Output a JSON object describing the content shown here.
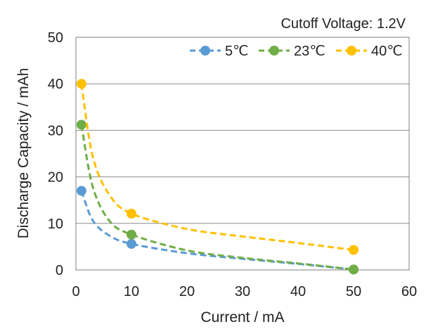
{
  "chart_data": {
    "type": "scatter",
    "title": "",
    "annotation": "Cutoff Voltage: 1.2V",
    "xlabel": "Current / mA",
    "ylabel": "Discharge Capacity / mAh",
    "xlim": [
      0,
      60
    ],
    "ylim": [
      0,
      50
    ],
    "x_ticks": [
      "0",
      "10",
      "20",
      "30",
      "40",
      "50",
      "60"
    ],
    "y_ticks": [
      "0",
      "10",
      "20",
      "30",
      "40",
      "50"
    ],
    "grid": "horizontal",
    "legend_position": "top-right",
    "series": [
      {
        "name": "5℃",
        "color": "#5B9BD5",
        "x": [
          1,
          10,
          50
        ],
        "y": [
          17.0,
          5.6,
          0.1
        ],
        "curve": [
          [
            1,
            17.0
          ],
          [
            3,
            10.7
          ],
          [
            6,
            7.4
          ],
          [
            10,
            5.6
          ],
          [
            20,
            3.6
          ],
          [
            30,
            2.4
          ],
          [
            40,
            1.3
          ],
          [
            50,
            0.1
          ]
        ]
      },
      {
        "name": "23℃",
        "color": "#70AD47",
        "x": [
          1,
          10,
          50
        ],
        "y": [
          31.2,
          7.6,
          0.1
        ],
        "curve": [
          [
            1,
            31.2
          ],
          [
            3,
            18.0
          ],
          [
            6,
            10.6
          ],
          [
            10,
            7.6
          ],
          [
            20,
            4.2
          ],
          [
            30,
            2.6
          ],
          [
            40,
            1.4
          ],
          [
            50,
            0.1
          ]
        ]
      },
      {
        "name": "40℃",
        "color": "#FFC000",
        "x": [
          1,
          10,
          50
        ],
        "y": [
          40.0,
          12.1,
          4.3
        ],
        "curve": [
          [
            1,
            40.0
          ],
          [
            3,
            24.5
          ],
          [
            6,
            16.2
          ],
          [
            10,
            12.1
          ],
          [
            20,
            8.8
          ],
          [
            30,
            7.2
          ],
          [
            40,
            5.8
          ],
          [
            50,
            4.3
          ]
        ]
      }
    ]
  }
}
